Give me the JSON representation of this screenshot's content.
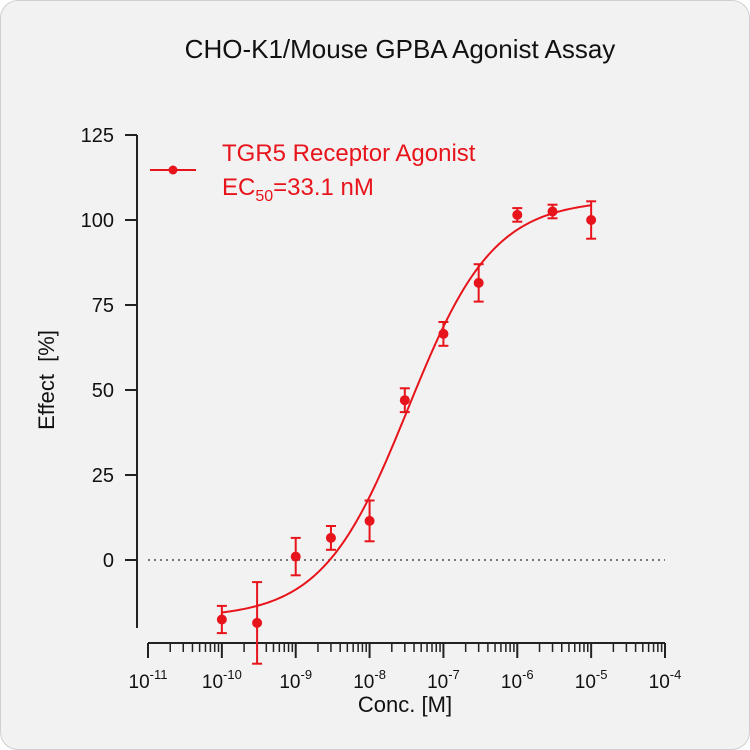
{
  "chart_data": {
    "type": "scatter",
    "title": "CHO-K1/Mouse GPBA Agonist Assay",
    "xlabel": "Conc. [M]",
    "ylabel": "Effect  [%]",
    "x_scale": "log",
    "xlim": [
      1e-11,
      0.0001
    ],
    "ylim": [
      -20,
      125
    ],
    "y_ticks": [
      0,
      25,
      50,
      75,
      100,
      125
    ],
    "x_tick_labels": [
      {
        "base": "10",
        "exp": "-11"
      },
      {
        "base": "10",
        "exp": "-10"
      },
      {
        "base": "10",
        "exp": "-9"
      },
      {
        "base": "10",
        "exp": "-8"
      },
      {
        "base": "10",
        "exp": "-7"
      },
      {
        "base": "10",
        "exp": "-6"
      },
      {
        "base": "10",
        "exp": "-5"
      },
      {
        "base": "10",
        "exp": "-4"
      }
    ],
    "reference_line_y": 0,
    "legend": {
      "placement": "top-left",
      "name": "TGR5 Receptor Agonist",
      "ec50_prefix": "EC",
      "ec50_sub": "50",
      "ec50_value": "=33.1 nM"
    },
    "series": [
      {
        "color": "#e8141b",
        "points": [
          {
            "x": 1e-10,
            "y": -17.5,
            "err": 4
          },
          {
            "x": 3e-10,
            "y": -18.5,
            "err": 12
          },
          {
            "x": 1e-09,
            "y": 1,
            "err": 5.5
          },
          {
            "x": 3e-09,
            "y": 6.5,
            "err": 3.5
          },
          {
            "x": 1e-08,
            "y": 11.5,
            "err": 6
          },
          {
            "x": 3e-08,
            "y": 47,
            "err": 3.5
          },
          {
            "x": 1e-07,
            "y": 66.5,
            "err": 3.5
          },
          {
            "x": 3e-07,
            "y": 81.5,
            "err": 5.5
          },
          {
            "x": 1e-06,
            "y": 101.5,
            "err": 2
          },
          {
            "x": 3e-06,
            "y": 102.5,
            "err": 2
          },
          {
            "x": 1e-05,
            "y": 100,
            "err": 5.5
          }
        ],
        "fit": {
          "bottom": -17,
          "top": 106,
          "log_ec50": -7.48,
          "hill": 0.75
        }
      }
    ]
  }
}
